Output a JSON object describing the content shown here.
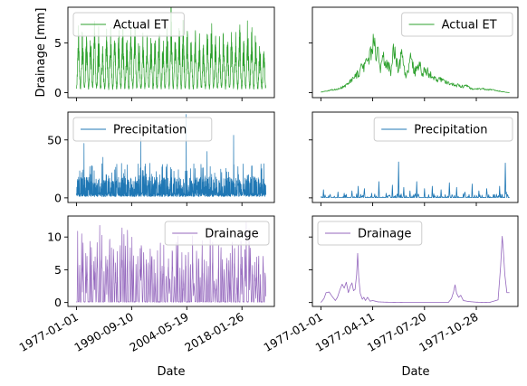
{
  "figure": {
    "ylabel": "Drainage [mm]",
    "xlabel": "Date"
  },
  "colors": {
    "et": "#2ca02c",
    "precip": "#1f77b4",
    "drainage": "#9467bd"
  },
  "chart_data": [
    {
      "type": "line",
      "row": 0,
      "col": 0,
      "series": [
        {
          "name": "Actual ET",
          "color": "#2ca02c"
        }
      ],
      "x_range": [
        "1977-01-01",
        "2023-12-31"
      ],
      "ylim": [
        -0.5,
        8.6
      ],
      "yticks": [
        0,
        5
      ],
      "xticks": [],
      "legend": "upper left",
      "pattern": {
        "kind": "seasonal",
        "years": 47,
        "base": 0.3,
        "peak_min": 4.0,
        "peak_max": 6.6,
        "spike": 8.1,
        "noise": 1.2
      }
    },
    {
      "type": "line",
      "row": 0,
      "col": 1,
      "series": [
        {
          "name": "Actual ET",
          "color": "#2ca02c"
        }
      ],
      "x_range": [
        "1977-01-01",
        "1977-12-31"
      ],
      "ylim": [
        -0.5,
        8.6
      ],
      "yticks": [],
      "xticks": [],
      "legend": "upper right",
      "keypoints": [
        [
          0,
          0.05
        ],
        [
          15,
          0.2
        ],
        [
          30,
          0.35
        ],
        [
          45,
          0.6
        ],
        [
          55,
          1.0
        ],
        [
          65,
          1.5
        ],
        [
          75,
          2.2
        ],
        [
          85,
          2.9
        ],
        [
          92,
          3.5
        ],
        [
          99,
          4.2
        ],
        [
          104,
          5.5
        ],
        [
          107,
          3.2
        ],
        [
          110,
          4.6
        ],
        [
          115,
          2.0
        ],
        [
          120,
          3.6
        ],
        [
          125,
          2.5
        ],
        [
          130,
          3.1
        ],
        [
          135,
          1.7
        ],
        [
          140,
          4.9
        ],
        [
          145,
          3.4
        ],
        [
          150,
          2.2
        ],
        [
          155,
          3.9
        ],
        [
          160,
          2.7
        ],
        [
          165,
          1.7
        ],
        [
          170,
          2.9
        ],
        [
          175,
          3.4
        ],
        [
          180,
          1.9
        ],
        [
          185,
          2.6
        ],
        [
          190,
          3.1
        ],
        [
          195,
          1.7
        ],
        [
          200,
          2.5
        ],
        [
          205,
          2.1
        ],
        [
          210,
          1.8
        ],
        [
          220,
          1.5
        ],
        [
          230,
          1.3
        ],
        [
          240,
          1.0
        ],
        [
          250,
          0.9
        ],
        [
          260,
          0.8
        ],
        [
          270,
          0.6
        ],
        [
          280,
          0.7
        ],
        [
          290,
          0.4
        ],
        [
          300,
          0.35
        ],
        [
          310,
          0.4
        ],
        [
          320,
          0.3
        ],
        [
          330,
          0.3
        ],
        [
          340,
          0.2
        ],
        [
          350,
          0.1
        ],
        [
          364,
          0.0
        ]
      ]
    },
    {
      "type": "line",
      "row": 1,
      "col": 0,
      "series": [
        {
          "name": "Precipitation",
          "color": "#1f77b4"
        }
      ],
      "x_range": [
        "1977-01-01",
        "2023-12-31"
      ],
      "ylim": [
        -4,
        74
      ],
      "yticks": [
        0,
        50
      ],
      "xticks": [],
      "legend": "upper left",
      "pattern": {
        "kind": "dense",
        "base": 1.0,
        "typical": 14,
        "max_peaks": [
          [
            0.04,
            47
          ],
          [
            0.34,
            52
          ],
          [
            0.58,
            72
          ],
          [
            0.83,
            54
          ],
          [
            0.14,
            35
          ],
          [
            0.69,
            40
          ]
        ]
      }
    },
    {
      "type": "line",
      "row": 1,
      "col": 1,
      "series": [
        {
          "name": "Precipitation",
          "color": "#1f77b4"
        }
      ],
      "x_range": [
        "1977-01-01",
        "1977-12-31"
      ],
      "ylim": [
        -4,
        74
      ],
      "yticks": [],
      "xticks": [],
      "legend": "upper right",
      "keypoints": [
        [
          5,
          7
        ],
        [
          18,
          3
        ],
        [
          33,
          5
        ],
        [
          45,
          4
        ],
        [
          60,
          6
        ],
        [
          72,
          10
        ],
        [
          84,
          8
        ],
        [
          98,
          4
        ],
        [
          112,
          14
        ],
        [
          126,
          4
        ],
        [
          138,
          11
        ],
        [
          147,
          3
        ],
        [
          150,
          31
        ],
        [
          160,
          9
        ],
        [
          172,
          6
        ],
        [
          185,
          14
        ],
        [
          200,
          8
        ],
        [
          215,
          10
        ],
        [
          232,
          7
        ],
        [
          248,
          13
        ],
        [
          262,
          9
        ],
        [
          278,
          5
        ],
        [
          292,
          12
        ],
        [
          305,
          6
        ],
        [
          320,
          8
        ],
        [
          335,
          3
        ],
        [
          345,
          10
        ],
        [
          356,
          30
        ],
        [
          358,
          5
        ]
      ]
    },
    {
      "type": "line",
      "row": 2,
      "col": 0,
      "series": [
        {
          "name": "Drainage",
          "color": "#9467bd"
        }
      ],
      "x_range": [
        "1977-01-01",
        "2023-12-31"
      ],
      "xtick_dates": [
        "1977-01-01",
        "1990-09-10",
        "2004-05-19",
        "2018-01-26"
      ],
      "ylim": [
        -0.6,
        13.2
      ],
      "yticks": [
        0,
        5,
        10
      ],
      "legend": "upper right",
      "pattern": {
        "kind": "bursts",
        "years": 47,
        "peak_min": 4.0,
        "peak_max": 12.4
      }
    },
    {
      "type": "line",
      "row": 2,
      "col": 1,
      "series": [
        {
          "name": "Drainage",
          "color": "#9467bd"
        }
      ],
      "x_range": [
        "1977-01-01",
        "1977-12-31"
      ],
      "xtick_dates": [
        "1977-01-01",
        "1977-04-11",
        "1977-07-20",
        "1977-10-28"
      ],
      "ylim": [
        -0.6,
        13.2
      ],
      "yticks": [],
      "legend": "upper left",
      "keypoints": [
        [
          0,
          0
        ],
        [
          6,
          0.6
        ],
        [
          10,
          1.5
        ],
        [
          16,
          1.6
        ],
        [
          22,
          0.9
        ],
        [
          28,
          0.3
        ],
        [
          32,
          0.8
        ],
        [
          37,
          2.0
        ],
        [
          41,
          2.8
        ],
        [
          45,
          2.2
        ],
        [
          49,
          3.1
        ],
        [
          53,
          1.5
        ],
        [
          57,
          2.5
        ],
        [
          60,
          3.0
        ],
        [
          63,
          1.8
        ],
        [
          66,
          2.0
        ],
        [
          69,
          4.3
        ],
        [
          71,
          7.5
        ],
        [
          73,
          3.9
        ],
        [
          76,
          1.4
        ],
        [
          80,
          0.5
        ],
        [
          83,
          0.8
        ],
        [
          86,
          0.3
        ],
        [
          90,
          0.8
        ],
        [
          95,
          0.2
        ],
        [
          100,
          0.3
        ],
        [
          110,
          0.1
        ],
        [
          125,
          0.05
        ],
        [
          165,
          0
        ],
        [
          246,
          0
        ],
        [
          252,
          0.6
        ],
        [
          256,
          1.6
        ],
        [
          259,
          2.7
        ],
        [
          262,
          1.4
        ],
        [
          266,
          0.8
        ],
        [
          270,
          1.1
        ],
        [
          275,
          0.3
        ],
        [
          285,
          0.15
        ],
        [
          300,
          0.05
        ],
        [
          325,
          0.0
        ],
        [
          342,
          0.4
        ],
        [
          347,
          5.6
        ],
        [
          350,
          10.1
        ],
        [
          352,
          8.2
        ],
        [
          355,
          4.3
        ],
        [
          359,
          1.5
        ]
      ]
    }
  ]
}
